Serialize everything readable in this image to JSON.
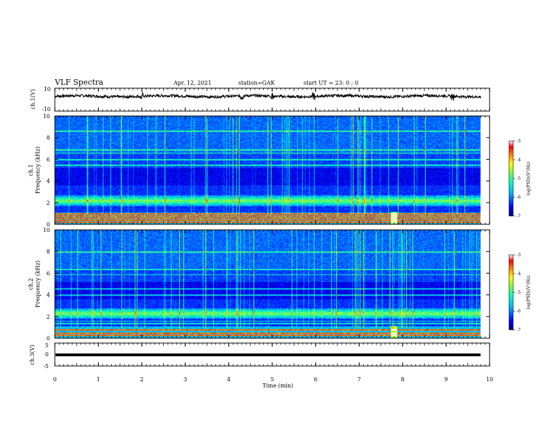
{
  "header": {
    "title": "VLF Spectra",
    "date": "Apr. 12, 2021",
    "station": "station=GAK",
    "start": "start  UT =   23: 0  : 0"
  },
  "chart_data": {
    "type": "heatmap",
    "xlabel": "Time  (min)",
    "xlim": [
      0,
      10
    ],
    "x_ticks": [
      "0",
      "1",
      "2",
      "3",
      "4",
      "5",
      "6",
      "7",
      "8",
      "9",
      "10"
    ],
    "panels": [
      {
        "id": "ch1-waveform",
        "type": "line",
        "ylabel": "ch.1(V)",
        "ylim": [
          -10,
          10
        ],
        "y_ticks": [
          "10",
          "-10"
        ],
        "baseline": 3,
        "line_color": "#000000",
        "data_end_min": 9.8
      },
      {
        "id": "ch1-spectrogram",
        "type": "heatmap",
        "ylabel": "ch.1\nFrequency  (kHz)",
        "ylim": [
          0,
          10
        ],
        "y_ticks": [
          "0",
          "2",
          "4",
          "6",
          "8",
          "10"
        ],
        "data_end_min": 9.8,
        "features": {
          "lines_khz": [
            0.2,
            0.4,
            0.6,
            0.8,
            1.0,
            5.5,
            6.0,
            6.6,
            6.9,
            8.6
          ],
          "noise_band_khz": [
            1.7,
            2.7
          ],
          "event_at_min": 7.8
        },
        "colorbar": {
          "label": "log(PSD)(V²/Hz)",
          "range": [
            -7,
            -3
          ],
          "ticks": [
            "-3",
            "-4",
            "-5",
            "-6",
            "-7"
          ]
        }
      },
      {
        "id": "ch2-spectrogram",
        "type": "heatmap",
        "ylabel": "ch.2\nFrequency  (kHz)",
        "ylim": [
          0,
          10
        ],
        "y_ticks": [
          "0",
          "2",
          "4",
          "6",
          "8",
          "10"
        ],
        "data_end_min": 9.8,
        "features": {
          "lines_khz": [
            0.3,
            0.5,
            0.8,
            1.4,
            1.6,
            4.0,
            4.6,
            5.9,
            6.4,
            8.0
          ],
          "noise_band_khz": [
            1.8,
            2.8
          ],
          "event_at_min": 7.8
        },
        "colorbar": {
          "label": "log(PSD)(V²/Hz)",
          "range": [
            -7,
            -3
          ],
          "ticks": [
            "-3",
            "-4",
            "-5",
            "-6",
            "-7"
          ]
        }
      },
      {
        "id": "ch3-waveform",
        "type": "line",
        "ylabel": "ch.3(V)",
        "ylim": [
          -5,
          5
        ],
        "y_ticks": [
          "5",
          "0",
          "-5"
        ],
        "baseline": 0,
        "line_color": "#000000",
        "data_end_min": 9.8
      }
    ],
    "colormap": [
      "#00007f",
      "#0000ff",
      "#0080ff",
      "#00ffff",
      "#80ff80",
      "#ffff00",
      "#ff8000",
      "#ff0000",
      "#800000",
      "#ffffff"
    ]
  }
}
